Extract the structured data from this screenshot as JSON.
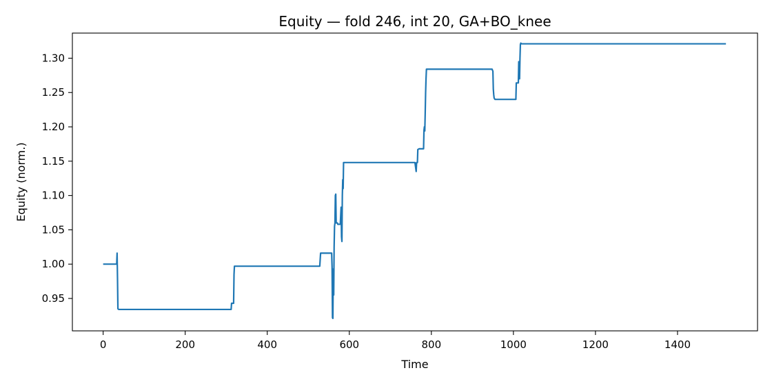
{
  "chart_data": {
    "type": "line",
    "title": "Equity — fold 246, int 20, GA+BO_knee",
    "xlabel": "Time",
    "ylabel": "Equity (norm.)",
    "xlim": [
      -75,
      1595
    ],
    "ylim": [
      0.9028,
      1.3366
    ],
    "xticks": [
      0,
      200,
      400,
      600,
      800,
      1000,
      1200,
      1400
    ],
    "yticks": [
      0.95,
      1.0,
      1.05,
      1.1,
      1.15,
      1.2,
      1.25,
      1.3
    ],
    "ytick_labels": [
      "0.95",
      "1.00",
      "1.05",
      "1.10",
      "1.15",
      "1.20",
      "1.25",
      "1.30"
    ],
    "grid": false,
    "legend": null,
    "series": [
      {
        "color": "#1f77b4",
        "x": [
          0,
          33,
          34,
          35,
          36,
          38,
          40,
          60,
          100,
          200,
          300,
          312,
          313,
          318,
          319,
          320,
          322,
          400,
          500,
          528,
          530,
          531,
          545,
          557,
          558,
          559,
          560,
          561,
          562,
          563,
          564,
          565,
          566,
          567,
          568,
          569,
          570,
          571,
          572,
          575,
          578,
          580,
          581,
          582,
          583,
          584,
          585,
          586,
          587,
          588,
          589,
          590,
          600,
          700,
          760,
          763,
          764,
          766,
          767,
          770,
          780,
          781,
          782,
          783,
          784,
          785,
          786,
          787,
          788,
          800,
          900,
          948,
          950,
          951,
          952,
          953,
          955,
          958,
          1000,
          1006,
          1007,
          1010,
          1012,
          1013,
          1015,
          1016,
          1017,
          1018,
          1020,
          1100,
          1200,
          1300,
          1400,
          1518
        ],
        "y": [
          1.0,
          1.0,
          1.016,
          0.98,
          0.935,
          0.934,
          0.934,
          0.934,
          0.934,
          0.934,
          0.934,
          0.934,
          0.943,
          0.943,
          0.985,
          0.997,
          0.997,
          0.997,
          0.997,
          0.997,
          1.016,
          1.016,
          1.016,
          1.016,
          0.995,
          0.922,
          0.921,
          0.993,
          0.955,
          1.025,
          1.055,
          1.06,
          1.1,
          1.102,
          1.06,
          1.06,
          1.06,
          1.06,
          1.058,
          1.058,
          1.058,
          1.083,
          1.04,
          1.033,
          1.1,
          1.123,
          1.11,
          1.148,
          1.148,
          1.148,
          1.148,
          1.148,
          1.148,
          1.148,
          1.148,
          1.135,
          1.148,
          1.148,
          1.167,
          1.168,
          1.168,
          1.168,
          1.195,
          1.2,
          1.194,
          1.22,
          1.25,
          1.27,
          1.284,
          1.284,
          1.284,
          1.284,
          1.281,
          1.255,
          1.247,
          1.242,
          1.24,
          1.24,
          1.24,
          1.24,
          1.264,
          1.264,
          1.264,
          1.295,
          1.27,
          1.3,
          1.32,
          1.322,
          1.321,
          1.321,
          1.321,
          1.321,
          1.321,
          1.321
        ]
      }
    ]
  }
}
